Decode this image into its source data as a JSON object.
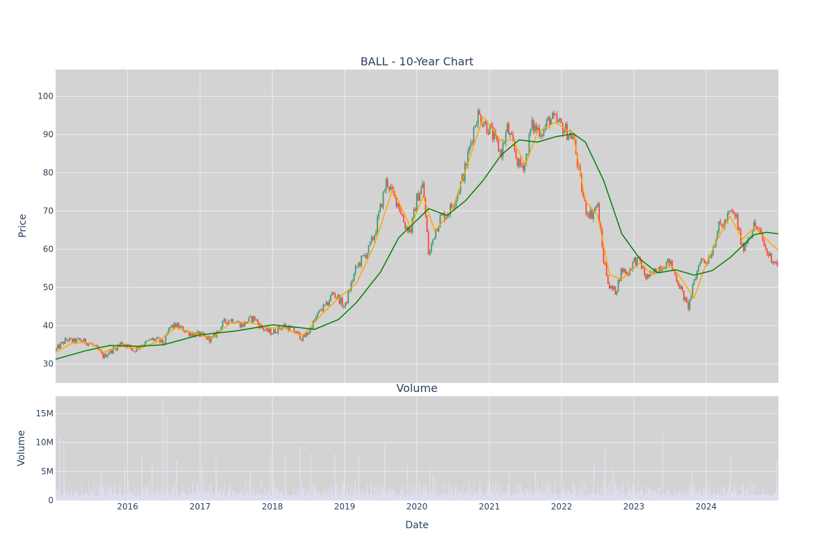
{
  "chart_data": [
    {
      "type": "candlestick",
      "title": "BALL - 10-Year Chart",
      "xlabel": "",
      "ylabel": "Price",
      "xrange": [
        "2015-01-02",
        "2024-12-31"
      ],
      "ylim": [
        25,
        107
      ],
      "yticks": [
        30,
        40,
        50,
        60,
        70,
        80,
        90,
        100
      ],
      "grid": true,
      "colors": {
        "increasing": "#3d9970",
        "decreasing": "#ff4136",
        "ma_short": "#ffa500",
        "ma_long": "#008000",
        "background": "#d3d3d3",
        "grid": "#ebebf5"
      },
      "series": [
        {
          "kind": "close",
          "points": [
            [
              "2015-01-02",
              33.6
            ],
            [
              "2015-02-01",
              35.2
            ],
            [
              "2015-03-01",
              36.4
            ],
            [
              "2015-04-01",
              35.8
            ],
            [
              "2015-05-01",
              36.2
            ],
            [
              "2015-06-01",
              35.8
            ],
            [
              "2015-07-01",
              35.2
            ],
            [
              "2015-08-01",
              33.8
            ],
            [
              "2015-09-01",
              31.8
            ],
            [
              "2015-10-01",
              33.2
            ],
            [
              "2015-11-01",
              34.2
            ],
            [
              "2015-12-01",
              35.6
            ],
            [
              "2016-01-01",
              34.8
            ],
            [
              "2016-02-01",
              33.4
            ],
            [
              "2016-03-01",
              34.8
            ],
            [
              "2016-04-01",
              35.4
            ],
            [
              "2016-05-01",
              36.4
            ],
            [
              "2016-06-01",
              36.2
            ],
            [
              "2016-07-01",
              35.2
            ],
            [
              "2016-08-01",
              39.6
            ],
            [
              "2016-09-01",
              40.0
            ],
            [
              "2016-10-01",
              39.2
            ],
            [
              "2016-11-01",
              38.2
            ],
            [
              "2016-12-01",
              37.8
            ],
            [
              "2017-01-01",
              37.6
            ],
            [
              "2017-02-01",
              36.8
            ],
            [
              "2017-03-01",
              36.4
            ],
            [
              "2017-04-01",
              38.6
            ],
            [
              "2017-05-01",
              40.8
            ],
            [
              "2017-06-01",
              41.6
            ],
            [
              "2017-07-01",
              41.2
            ],
            [
              "2017-08-01",
              40.0
            ],
            [
              "2017-09-01",
              41.4
            ],
            [
              "2017-10-01",
              42.0
            ],
            [
              "2017-11-01",
              39.8
            ],
            [
              "2017-12-01",
              38.6
            ],
            [
              "2018-01-01",
              38.2
            ],
            [
              "2018-02-01",
              39.2
            ],
            [
              "2018-03-01",
              40.0
            ],
            [
              "2018-04-01",
              39.2
            ],
            [
              "2018-05-01",
              38.2
            ],
            [
              "2018-06-01",
              36.6
            ],
            [
              "2018-07-01",
              38.2
            ],
            [
              "2018-08-01",
              41.2
            ],
            [
              "2018-09-01",
              44.2
            ],
            [
              "2018-10-01",
              45.2
            ],
            [
              "2018-11-01",
              48.6
            ],
            [
              "2018-12-01",
              47.2
            ],
            [
              "2019-01-01",
              44.6
            ],
            [
              "2019-02-01",
              50.6
            ],
            [
              "2019-03-01",
              55.2
            ],
            [
              "2019-04-01",
              57.6
            ],
            [
              "2019-05-01",
              59.8
            ],
            [
              "2019-06-01",
              64.0
            ],
            [
              "2019-07-01",
              70.8
            ],
            [
              "2019-08-01",
              78.0
            ],
            [
              "2019-09-01",
              74.2
            ],
            [
              "2019-10-01",
              71.8
            ],
            [
              "2019-11-01",
              66.2
            ],
            [
              "2019-12-01",
              64.8
            ],
            [
              "2020-01-01",
              73.4
            ],
            [
              "2020-02-01",
              76.8
            ],
            [
              "2020-03-01",
              58.0
            ],
            [
              "2020-04-01",
              64.8
            ],
            [
              "2020-05-01",
              68.4
            ],
            [
              "2020-06-01",
              69.2
            ],
            [
              "2020-07-01",
              71.8
            ],
            [
              "2020-08-01",
              75.8
            ],
            [
              "2020-09-01",
              81.0
            ],
            [
              "2020-10-01",
              88.6
            ],
            [
              "2020-11-01",
              95.4
            ],
            [
              "2020-12-01",
              93.6
            ],
            [
              "2021-01-01",
              91.4
            ],
            [
              "2021-02-01",
              88.2
            ],
            [
              "2021-03-01",
              85.0
            ],
            [
              "2021-04-01",
              91.6
            ],
            [
              "2021-05-01",
              87.0
            ],
            [
              "2021-06-01",
              81.6
            ],
            [
              "2021-07-01",
              82.6
            ],
            [
              "2021-08-01",
              92.2
            ],
            [
              "2021-09-01",
              91.4
            ],
            [
              "2021-10-01",
              90.8
            ],
            [
              "2021-11-01",
              94.2
            ],
            [
              "2021-12-01",
              93.4
            ],
            [
              "2022-01-01",
              92.2
            ],
            [
              "2022-02-01",
              90.4
            ],
            [
              "2022-03-01",
              89.4
            ],
            [
              "2022-04-01",
              79.0
            ],
            [
              "2022-05-01",
              70.6
            ],
            [
              "2022-06-01",
              69.0
            ],
            [
              "2022-07-01",
              71.8
            ],
            [
              "2022-08-01",
              57.2
            ],
            [
              "2022-09-01",
              49.8
            ],
            [
              "2022-10-01",
              49.0
            ],
            [
              "2022-11-01",
              54.8
            ],
            [
              "2022-12-01",
              53.6
            ],
            [
              "2023-01-01",
              57.0
            ],
            [
              "2023-02-01",
              56.8
            ],
            [
              "2023-03-01",
              52.6
            ],
            [
              "2023-04-01",
              53.2
            ],
            [
              "2023-05-01",
              55.0
            ],
            [
              "2023-06-01",
              56.0
            ],
            [
              "2023-07-01",
              56.6
            ],
            [
              "2023-08-01",
              52.8
            ],
            [
              "2023-09-01",
              48.8
            ],
            [
              "2023-10-01",
              44.6
            ],
            [
              "2023-11-01",
              51.2
            ],
            [
              "2023-12-01",
              57.4
            ],
            [
              "2024-01-01",
              56.6
            ],
            [
              "2024-02-01",
              59.8
            ],
            [
              "2024-03-01",
              65.6
            ],
            [
              "2024-04-01",
              66.6
            ],
            [
              "2024-05-01",
              69.6
            ],
            [
              "2024-06-01",
              68.4
            ],
            [
              "2024-07-01",
              60.0
            ],
            [
              "2024-08-01",
              63.2
            ],
            [
              "2024-09-01",
              66.4
            ],
            [
              "2024-10-01",
              64.0
            ],
            [
              "2024-11-01",
              59.2
            ],
            [
              "2024-12-31",
              55.6
            ]
          ]
        },
        {
          "kind": "ma_short",
          "points": [
            [
              "2015-01-02",
              33.0
            ],
            [
              "2015-04-01",
              35.6
            ],
            [
              "2015-07-01",
              35.4
            ],
            [
              "2015-09-01",
              33.0
            ],
            [
              "2015-12-01",
              34.6
            ],
            [
              "2016-03-01",
              34.0
            ],
            [
              "2016-06-01",
              35.8
            ],
            [
              "2016-09-01",
              39.6
            ],
            [
              "2016-12-01",
              38.0
            ],
            [
              "2017-03-01",
              36.6
            ],
            [
              "2017-06-01",
              40.6
            ],
            [
              "2017-09-01",
              41.0
            ],
            [
              "2017-12-01",
              39.4
            ],
            [
              "2018-03-01",
              39.4
            ],
            [
              "2018-06-01",
              37.2
            ],
            [
              "2018-09-01",
              42.6
            ],
            [
              "2018-12-01",
              47.2
            ],
            [
              "2019-03-01",
              51.0
            ],
            [
              "2019-06-01",
              61.2
            ],
            [
              "2019-09-01",
              75.8
            ],
            [
              "2019-12-01",
              65.6
            ],
            [
              "2020-02-01",
              74.0
            ],
            [
              "2020-04-01",
              64.6
            ],
            [
              "2020-07-01",
              70.8
            ],
            [
              "2020-10-01",
              85.0
            ],
            [
              "2020-12-01",
              94.6
            ],
            [
              "2021-03-01",
              88.4
            ],
            [
              "2021-05-01",
              88.6
            ],
            [
              "2021-07-01",
              82.0
            ],
            [
              "2021-09-01",
              90.6
            ],
            [
              "2021-12-01",
              93.2
            ],
            [
              "2022-03-01",
              90.0
            ],
            [
              "2022-05-01",
              72.6
            ],
            [
              "2022-07-01",
              69.0
            ],
            [
              "2022-09-01",
              53.2
            ],
            [
              "2022-11-01",
              52.2
            ],
            [
              "2023-02-01",
              56.4
            ],
            [
              "2023-04-01",
              53.4
            ],
            [
              "2023-07-01",
              56.2
            ],
            [
              "2023-09-01",
              52.0
            ],
            [
              "2023-11-01",
              47.2
            ],
            [
              "2024-01-01",
              56.2
            ],
            [
              "2024-03-01",
              62.8
            ],
            [
              "2024-05-01",
              68.6
            ],
            [
              "2024-07-01",
              62.6
            ],
            [
              "2024-09-01",
              65.6
            ],
            [
              "2024-12-31",
              59.6
            ]
          ]
        },
        {
          "kind": "ma_long",
          "points": [
            [
              "2015-01-02",
              31.2
            ],
            [
              "2015-06-01",
              33.4
            ],
            [
              "2015-10-01",
              34.8
            ],
            [
              "2016-03-01",
              34.6
            ],
            [
              "2016-07-01",
              35.0
            ],
            [
              "2017-01-01",
              37.6
            ],
            [
              "2017-07-01",
              38.6
            ],
            [
              "2018-01-01",
              40.2
            ],
            [
              "2018-05-01",
              39.6
            ],
            [
              "2018-08-01",
              39.0
            ],
            [
              "2018-12-01",
              41.6
            ],
            [
              "2019-03-01",
              46.0
            ],
            [
              "2019-07-01",
              54.0
            ],
            [
              "2019-10-01",
              63.0
            ],
            [
              "2020-01-01",
              67.6
            ],
            [
              "2020-03-01",
              70.6
            ],
            [
              "2020-06-01",
              68.8
            ],
            [
              "2020-09-01",
              72.6
            ],
            [
              "2020-12-01",
              78.0
            ],
            [
              "2021-03-01",
              84.6
            ],
            [
              "2021-06-01",
              88.6
            ],
            [
              "2021-09-01",
              88.0
            ],
            [
              "2021-12-01",
              89.4
            ],
            [
              "2022-03-01",
              90.2
            ],
            [
              "2022-05-01",
              88.0
            ],
            [
              "2022-08-01",
              78.0
            ],
            [
              "2022-11-01",
              64.0
            ],
            [
              "2023-02-01",
              57.4
            ],
            [
              "2023-05-01",
              53.8
            ],
            [
              "2023-08-01",
              54.6
            ],
            [
              "2023-11-01",
              53.2
            ],
            [
              "2024-02-01",
              54.4
            ],
            [
              "2024-05-01",
              57.8
            ],
            [
              "2024-09-01",
              63.8
            ],
            [
              "2024-11-01",
              64.4
            ],
            [
              "2024-12-31",
              64.0
            ]
          ]
        }
      ]
    },
    {
      "type": "bar",
      "title": "Volume",
      "xlabel": "Date",
      "ylabel": "Volume",
      "ylim": [
        0,
        18000000
      ],
      "yticks": [
        0,
        5000000,
        10000000,
        15000000
      ],
      "ytick_labels": [
        "0",
        "5M",
        "10M",
        "15M"
      ],
      "xticks": [
        "2016-01-01",
        "2017-01-01",
        "2018-01-01",
        "2019-01-01",
        "2020-01-01",
        "2021-01-01",
        "2022-01-01",
        "2023-01-01",
        "2024-01-01"
      ],
      "xtick_labels": [
        "2016",
        "2017",
        "2018",
        "2019",
        "2020",
        "2021",
        "2022",
        "2023",
        "2024"
      ],
      "colors": {
        "bar": "#e0e0f4",
        "background": "#d3d3d3",
        "grid": "#ebebf5"
      },
      "spikes": [
        [
          "2015-01-20",
          10900000
        ],
        [
          "2015-02-10",
          9600000
        ],
        [
          "2015-08-20",
          4600000
        ],
        [
          "2015-12-15",
          5900000
        ],
        [
          "2016-03-10",
          8100000
        ],
        [
          "2016-05-01",
          6600000
        ],
        [
          "2016-06-25",
          17400000
        ],
        [
          "2016-07-15",
          14500000
        ],
        [
          "2016-09-01",
          7000000
        ],
        [
          "2017-01-10",
          6100000
        ],
        [
          "2017-03-20",
          7400000
        ],
        [
          "2017-09-10",
          5300000
        ],
        [
          "2017-12-20",
          7300000
        ],
        [
          "2018-03-05",
          7400000
        ],
        [
          "2018-05-20",
          9300000
        ],
        [
          "2018-07-10",
          8100000
        ],
        [
          "2018-11-10",
          8000000
        ],
        [
          "2019-03-10",
          7900000
        ],
        [
          "2019-07-20",
          10200000
        ],
        [
          "2019-11-10",
          6500000
        ],
        [
          "2020-03-05",
          5600000
        ],
        [
          "2020-03-20",
          4300000
        ],
        [
          "2021-04-10",
          4700000
        ],
        [
          "2021-08-20",
          5400000
        ],
        [
          "2022-06-10",
          6400000
        ],
        [
          "2022-08-05",
          9000000
        ],
        [
          "2022-09-15",
          5700000
        ],
        [
          "2023-05-25",
          11500000
        ],
        [
          "2023-10-20",
          4900000
        ],
        [
          "2024-05-01",
          7400000
        ],
        [
          "2024-12-20",
          6800000
        ]
      ]
    }
  ]
}
